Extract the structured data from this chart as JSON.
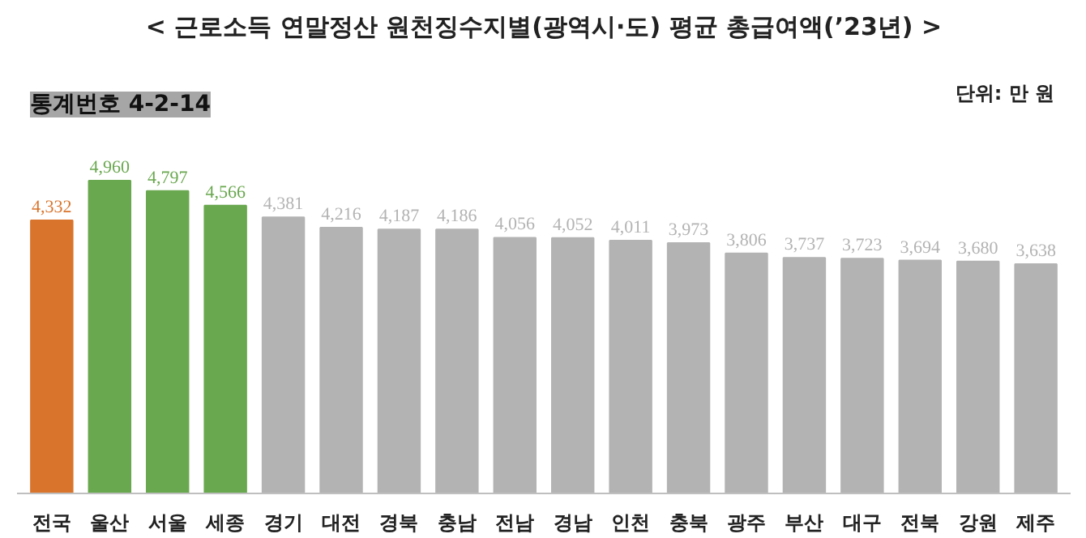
{
  "chart_data": {
    "type": "bar",
    "title": "< 근로소득 연말정산 원천징수지별(광역시·도) 평균 총급여액(’23년) >",
    "annotations": [
      "통계번호 4-2-14",
      "단위: 만 원"
    ],
    "categories": [
      "전국",
      "울산",
      "서울",
      "세종",
      "경기",
      "대전",
      "경북",
      "충남",
      "전남",
      "경남",
      "인천",
      "충북",
      "광주",
      "부산",
      "대구",
      "전북",
      "강원",
      "제주"
    ],
    "values": [
      4332,
      4960,
      4797,
      4566,
      4381,
      4216,
      4187,
      4186,
      4056,
      4052,
      4011,
      3973,
      3806,
      3737,
      3723,
      3694,
      3680,
      3638
    ],
    "colors": [
      "#d9742c",
      "#6aa84f",
      "#6aa84f",
      "#6aa84f",
      "#b3b3b3",
      "#b3b3b3",
      "#b3b3b3",
      "#b3b3b3",
      "#b3b3b3",
      "#b3b3b3",
      "#b3b3b3",
      "#b3b3b3",
      "#b3b3b3",
      "#b3b3b3",
      "#b3b3b3",
      "#b3b3b3",
      "#b3b3b3",
      "#b3b3b3"
    ],
    "value_labels": [
      "4,332",
      "4,960",
      "4,797",
      "4,566",
      "4,381",
      "4,216",
      "4,187",
      "4,186",
      "4,056",
      "4,052",
      "4,011",
      "3,973",
      "3,806",
      "3,737",
      "3,723",
      "3,694",
      "3,680",
      "3,638"
    ],
    "tick_labels": "x",
    "grid": false
  }
}
